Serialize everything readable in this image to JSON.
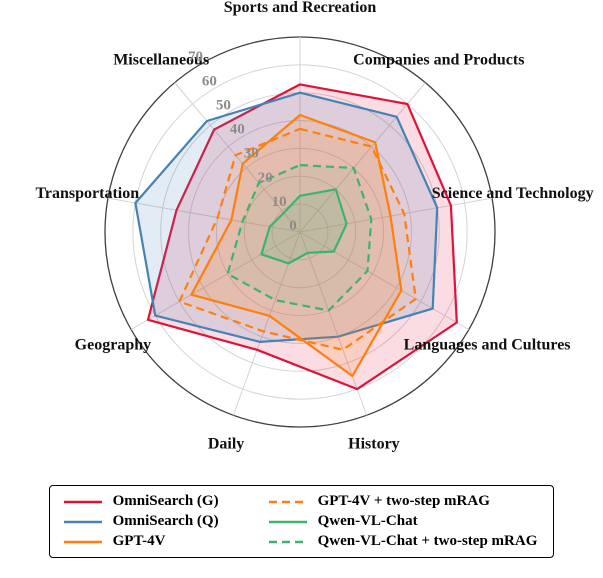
{
  "chart_data": {
    "type": "radar",
    "title": "",
    "categories": [
      "Sports and Recreation",
      "Companies and Products",
      "Science and Technology",
      "Languages and Cultures",
      "History",
      "Daily",
      "Geography",
      "Transportation",
      "Miscellaneous"
    ],
    "r_ticks": [
      0,
      10,
      20,
      30,
      40,
      50,
      60,
      70
    ],
    "rlim": [
      0,
      70
    ],
    "grid": true,
    "legend_position": "bottom",
    "legend_columns": 2,
    "tick_label_color": "#8c8c8c",
    "series": [
      {
        "name": "OmniSearch (G)",
        "color": "#dc143c",
        "line_style": "solid",
        "values": [
          53,
          60,
          55,
          65,
          60,
          45,
          63,
          45,
          48
        ]
      },
      {
        "name": "OmniSearch (Q)",
        "color": "#4682b4",
        "line_style": "solid",
        "values": [
          50,
          54,
          50,
          55,
          40,
          42,
          60,
          60,
          52
        ]
      },
      {
        "name": "GPT-4V",
        "color": "#ff7f0e",
        "line_style": "solid",
        "values": [
          42,
          42,
          33,
          42,
          55,
          32,
          45,
          25,
          32
        ]
      },
      {
        "name": "GPT-4V + two-step mRAG",
        "color": "#ff7f0e",
        "line_style": "dashed",
        "values": [
          37,
          40,
          38,
          48,
          45,
          38,
          50,
          30,
          36
        ]
      },
      {
        "name": "Qwen-VL-Chat",
        "color": "#3cb371",
        "line_style": "solid",
        "values": [
          13,
          20,
          17,
          14,
          8,
          12,
          16,
          11,
          9
        ]
      },
      {
        "name": "Qwen-VL-Chat + two-step mRAG",
        "color": "#3cb371",
        "line_style": "dashed",
        "values": [
          24,
          30,
          26,
          28,
          30,
          26,
          30,
          21,
          23
        ]
      }
    ]
  }
}
